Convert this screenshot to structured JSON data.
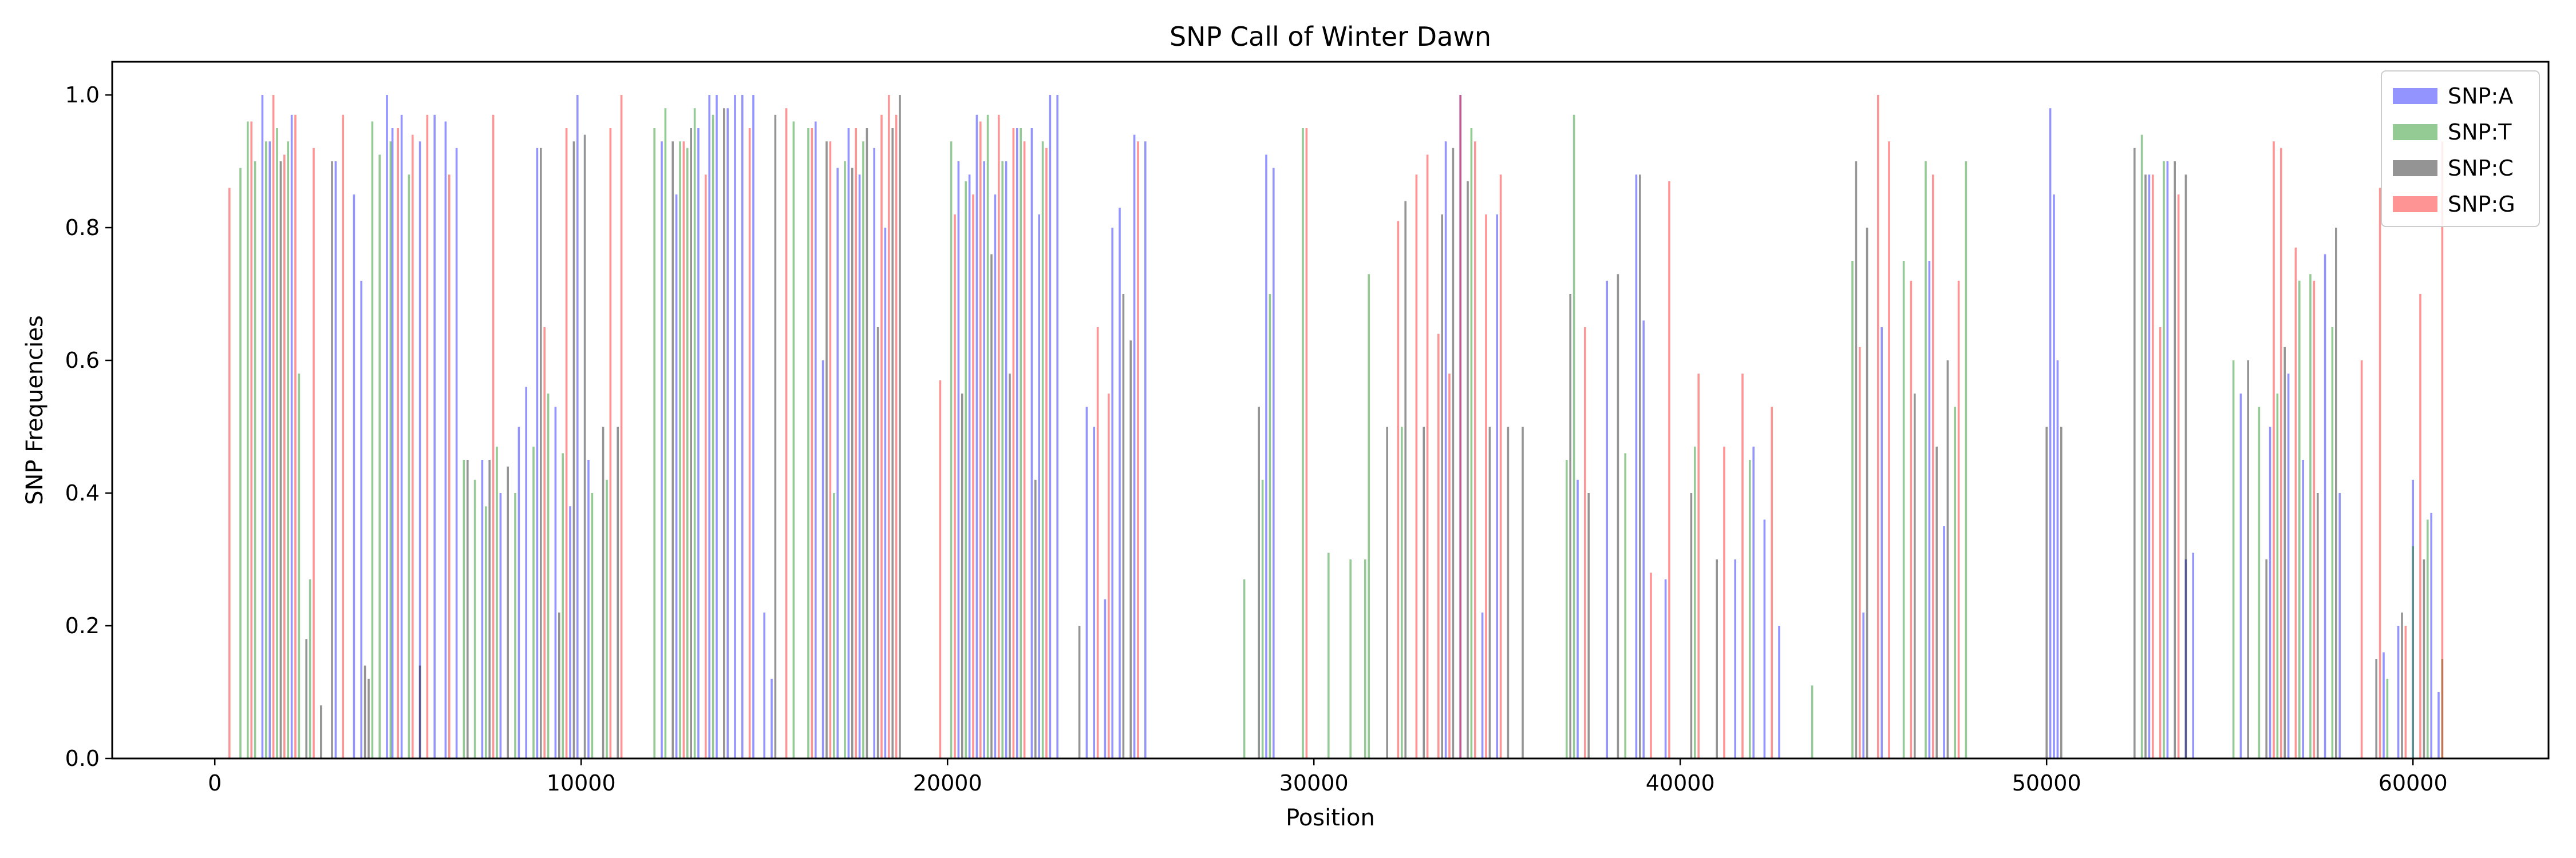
{
  "chart_data": {
    "type": "bar",
    "title": "SNP Call of Winter Dawn",
    "xlabel": "Position",
    "ylabel": "SNP Frequencies",
    "xlim": [
      -2800,
      63700
    ],
    "ylim": [
      0,
      1.05
    ],
    "xticks": [
      0,
      10000,
      20000,
      30000,
      40000,
      50000,
      60000
    ],
    "yticks": [
      0.0,
      0.2,
      0.4,
      0.6,
      0.8,
      1.0
    ],
    "xtick_labels": [
      "0",
      "10000",
      "20000",
      "30000",
      "40000",
      "50000",
      "60000"
    ],
    "ytick_labels": [
      "0.0",
      "0.2",
      "0.4",
      "0.6",
      "0.8",
      "1.0"
    ],
    "legend_position": "top-right",
    "grid": false,
    "series": [
      {
        "name": "SNP:A",
        "color": "#0000ff",
        "x": [
          1300,
          1500,
          2100,
          3300,
          3800,
          4000,
          4700,
          4850,
          5100,
          5600,
          6000,
          6300,
          6600,
          7300,
          7800,
          8300,
          8500,
          8800,
          9300,
          9700,
          9900,
          10200,
          12200,
          12600,
          13200,
          13500,
          13700,
          14000,
          14200,
          14400,
          14700,
          15000,
          15200,
          16400,
          16600,
          17000,
          17300,
          17600,
          18000,
          18300,
          20300,
          20600,
          20800,
          21000,
          21300,
          21600,
          21900,
          22300,
          22500,
          22800,
          23000,
          23800,
          24000,
          24300,
          24500,
          24700,
          25100,
          25400,
          28700,
          28900,
          33600,
          34000,
          34600,
          35000,
          37200,
          38000,
          38800,
          39000,
          39600,
          41500,
          42000,
          42300,
          42700,
          45000,
          45500,
          46800,
          47200,
          50100,
          50200,
          50300,
          52800,
          53300,
          53800,
          54000,
          55300,
          56100,
          56600,
          57000,
          57600,
          58000,
          59200,
          59600,
          60000,
          60500,
          60700
        ],
        "values": [
          1.0,
          0.93,
          0.97,
          0.9,
          0.85,
          0.72,
          1.0,
          0.95,
          0.97,
          0.93,
          0.97,
          0.96,
          0.92,
          0.45,
          0.4,
          0.5,
          0.56,
          0.92,
          0.53,
          0.38,
          1.0,
          0.45,
          0.93,
          0.85,
          0.95,
          1.0,
          1.0,
          0.98,
          1.0,
          1.0,
          1.0,
          0.22,
          0.12,
          0.96,
          0.6,
          0.89,
          0.95,
          0.88,
          0.92,
          0.8,
          0.9,
          0.88,
          0.97,
          0.9,
          0.85,
          0.9,
          0.95,
          0.95,
          0.82,
          1.0,
          1.0,
          0.53,
          0.5,
          0.24,
          0.8,
          0.83,
          0.94,
          0.93,
          0.91,
          0.89,
          0.93,
          1.0,
          0.22,
          0.82,
          0.42,
          0.72,
          0.88,
          0.66,
          0.27,
          0.3,
          0.47,
          0.36,
          0.2,
          0.22,
          0.65,
          0.75,
          0.35,
          0.98,
          0.85,
          0.6,
          0.88,
          0.9,
          0.3,
          0.31,
          0.55,
          0.5,
          0.58,
          0.45,
          0.76,
          0.4,
          0.16,
          0.2,
          0.42,
          0.37,
          0.1
        ]
      },
      {
        "name": "SNP:T",
        "color": "#008000",
        "x": [
          700,
          900,
          1100,
          1400,
          1700,
          2000,
          2300,
          2600,
          4300,
          4500,
          4800,
          5300,
          6800,
          7100,
          7400,
          7700,
          8200,
          8700,
          9100,
          9500,
          10300,
          10700,
          12000,
          12300,
          12700,
          12900,
          13100,
          13600,
          15800,
          16200,
          16900,
          17200,
          17700,
          20100,
          20500,
          21100,
          21500,
          22000,
          22600,
          28100,
          28600,
          28800,
          29700,
          30400,
          31000,
          31400,
          31500,
          32400,
          34300,
          36900,
          37100,
          38500,
          40400,
          41900,
          43600,
          44700,
          46100,
          46700,
          47500,
          47800,
          52600,
          53200,
          55100,
          55800,
          56300,
          56900,
          57200,
          57800,
          59300,
          60000,
          60400,
          60800
        ],
        "values": [
          0.89,
          0.96,
          0.9,
          0.93,
          0.95,
          0.93,
          0.58,
          0.27,
          0.96,
          0.91,
          0.93,
          0.88,
          0.45,
          0.42,
          0.38,
          0.47,
          0.4,
          0.47,
          0.55,
          0.46,
          0.4,
          0.42,
          0.95,
          0.98,
          0.93,
          0.92,
          0.98,
          0.97,
          0.96,
          0.95,
          0.4,
          0.9,
          0.93,
          0.93,
          0.87,
          0.97,
          0.9,
          0.95,
          0.93,
          0.27,
          0.42,
          0.7,
          0.95,
          0.31,
          0.3,
          0.3,
          0.73,
          0.5,
          0.95,
          0.45,
          0.97,
          0.46,
          0.47,
          0.45,
          0.11,
          0.75,
          0.75,
          0.9,
          0.53,
          0.9,
          0.94,
          0.9,
          0.6,
          0.53,
          0.55,
          0.72,
          0.73,
          0.65,
          0.12,
          0.32,
          0.36,
          0.15
        ]
      },
      {
        "name": "SNP:C",
        "color": "#000000",
        "x": [
          1800,
          2500,
          2900,
          3200,
          4100,
          4200,
          5600,
          6900,
          7500,
          8000,
          8900,
          9400,
          9800,
          10100,
          10600,
          11000,
          12500,
          13000,
          13900,
          15300,
          16700,
          17400,
          17800,
          18100,
          18500,
          18700,
          20400,
          21200,
          21700,
          22400,
          23600,
          24800,
          25000,
          28500,
          32000,
          32500,
          33000,
          33500,
          33800,
          34200,
          34800,
          35300,
          35700,
          37000,
          37500,
          38300,
          38900,
          40300,
          41000,
          44800,
          45100,
          46400,
          47000,
          47300,
          50000,
          50400,
          52400,
          52700,
          53500,
          53800,
          55500,
          56000,
          56500,
          57400,
          57900,
          59000,
          59700,
          60300
        ],
        "values": [
          0.9,
          0.18,
          0.08,
          0.9,
          0.14,
          0.12,
          0.14,
          0.45,
          0.45,
          0.44,
          0.92,
          0.22,
          0.93,
          0.94,
          0.5,
          0.5,
          0.93,
          0.95,
          0.98,
          0.97,
          0.93,
          0.89,
          0.95,
          0.65,
          0.95,
          1.0,
          0.55,
          0.76,
          0.58,
          0.42,
          0.2,
          0.7,
          0.63,
          0.53,
          0.5,
          0.84,
          0.5,
          0.82,
          0.92,
          0.87,
          0.5,
          0.5,
          0.5,
          0.7,
          0.4,
          0.73,
          0.88,
          0.4,
          0.3,
          0.9,
          0.8,
          0.55,
          0.47,
          0.6,
          0.5,
          0.5,
          0.92,
          0.88,
          0.9,
          0.88,
          0.6,
          0.3,
          0.62,
          0.4,
          0.8,
          0.15,
          0.22,
          0.3
        ]
      },
      {
        "name": "SNP:G",
        "color": "#ff0000",
        "x": [
          400,
          1000,
          1600,
          1900,
          2200,
          2700,
          3500,
          5000,
          5400,
          5800,
          6400,
          7600,
          9000,
          9600,
          10800,
          11100,
          12800,
          13400,
          14600,
          15600,
          16300,
          16800,
          17500,
          18200,
          18400,
          18600,
          19800,
          20200,
          20700,
          20900,
          21400,
          21800,
          22100,
          22700,
          24100,
          24400,
          25200,
          29800,
          32300,
          32800,
          33100,
          33400,
          33700,
          34000,
          34400,
          34700,
          35100,
          37400,
          39200,
          39700,
          40500,
          41200,
          41700,
          42500,
          44900,
          45400,
          45700,
          46300,
          46900,
          47600,
          52900,
          53100,
          53600,
          56200,
          56400,
          56800,
          57300,
          58600,
          59100,
          59800,
          60200,
          60800
        ],
        "values": [
          0.86,
          0.96,
          1.0,
          0.91,
          0.97,
          0.92,
          0.97,
          0.95,
          0.94,
          0.97,
          0.88,
          0.97,
          0.65,
          0.95,
          0.95,
          1.0,
          0.93,
          0.88,
          0.95,
          0.98,
          0.95,
          0.93,
          0.95,
          0.97,
          1.0,
          0.97,
          0.57,
          0.82,
          0.85,
          0.96,
          0.97,
          0.95,
          0.93,
          0.92,
          0.65,
          0.55,
          0.93,
          0.95,
          0.81,
          0.88,
          0.91,
          0.64,
          0.58,
          1.0,
          0.93,
          0.82,
          0.88,
          0.65,
          0.28,
          0.87,
          0.58,
          0.47,
          0.58,
          0.53,
          0.62,
          1.0,
          0.93,
          0.72,
          0.88,
          0.72,
          0.88,
          0.65,
          0.85,
          0.93,
          0.92,
          0.77,
          0.72,
          0.6,
          0.86,
          0.2,
          0.7,
          0.93
        ]
      }
    ]
  }
}
